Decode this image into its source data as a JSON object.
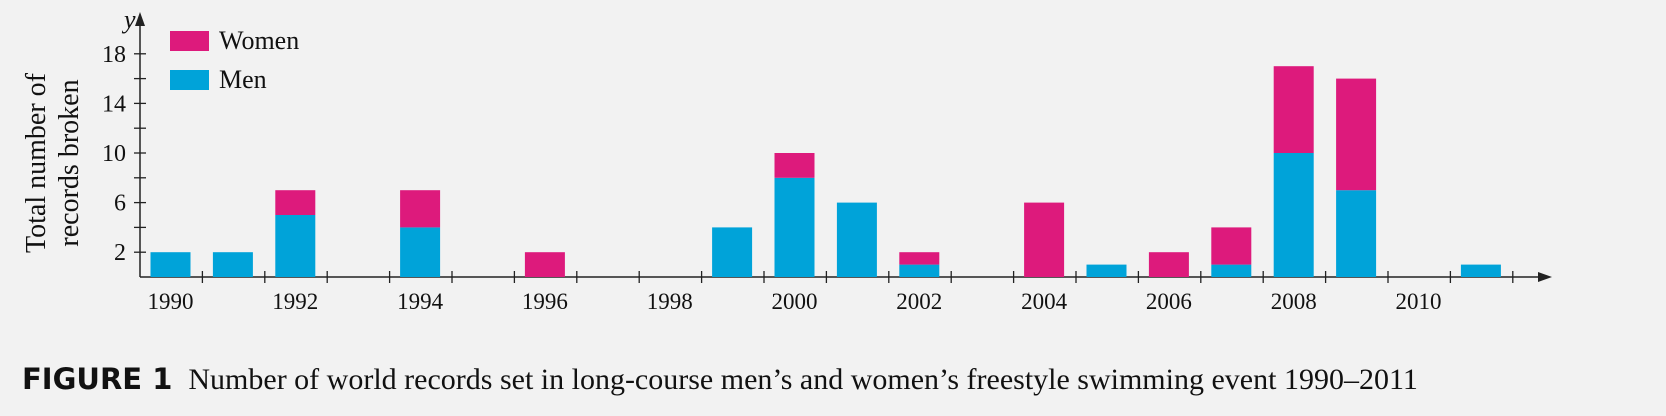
{
  "figure": {
    "label": "FIGURE 1",
    "caption": "Number of world records set in long-course men’s and women’s freestyle swimming event 1990–2011"
  },
  "chart_data": {
    "type": "bar",
    "stacked": true,
    "ylabel_line1": "Total number of",
    "ylabel_line2": "records broken",
    "yaxis_letter": "y",
    "ylim": [
      0,
      20
    ],
    "yticks": [
      2,
      6,
      10,
      14,
      18
    ],
    "xticks": [
      "1990",
      "1992",
      "1994",
      "1996",
      "1998",
      "2000",
      "2002",
      "2004",
      "2006",
      "2008",
      "2010"
    ],
    "categories": [
      "1990",
      "1991",
      "1992",
      "1993",
      "1994",
      "1995",
      "1996",
      "1997",
      "1998",
      "1999",
      "2000",
      "2001",
      "2002",
      "2003",
      "2004",
      "2005",
      "2006",
      "2007",
      "2008",
      "2009",
      "2010",
      "2011"
    ],
    "series": [
      {
        "name": "Men",
        "color": "#00a3d9",
        "values": [
          2,
          2,
          5,
          0,
          4,
          0,
          0,
          0,
          0,
          4,
          8,
          6,
          1,
          0,
          0,
          1,
          0,
          1,
          10,
          7,
          0,
          1
        ]
      },
      {
        "name": "Women",
        "color": "#dd1a7c",
        "values": [
          0,
          0,
          2,
          0,
          3,
          0,
          2,
          0,
          0,
          0,
          2,
          0,
          1,
          0,
          6,
          0,
          2,
          3,
          7,
          9,
          0,
          0
        ]
      }
    ],
    "legend_order": [
      "Women",
      "Men"
    ],
    "legend_position": "top-left",
    "grid": false
  }
}
